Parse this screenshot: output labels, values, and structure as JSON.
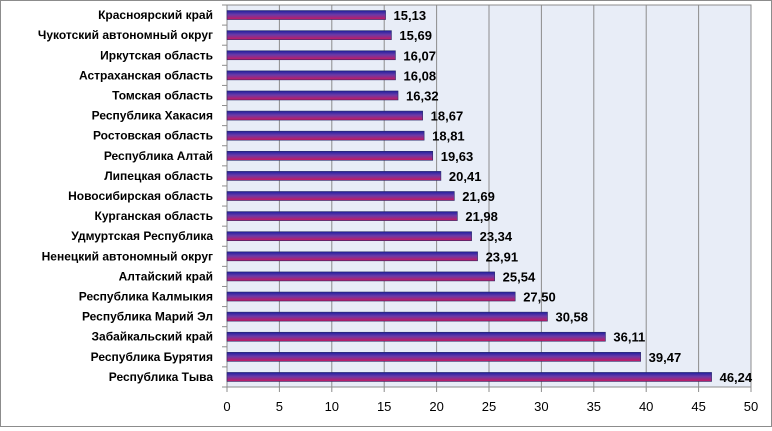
{
  "chart_data": {
    "type": "bar",
    "orientation": "horizontal",
    "categories": [
      "Красноярский край",
      "Чукотский автономный округ",
      "Иркутская область",
      "Астраханская область",
      "Томская область",
      "Республика Хакасия",
      "Ростовская область",
      "Республика Алтай",
      "Липецкая область",
      "Новосибирская область",
      "Курганская область",
      "Удмуртская Республика",
      "Ненецкий автономный округ",
      "Алтайский край",
      "Республика Калмыкия",
      "Республика Марий Эл",
      "Забайкальский край",
      "Республика Бурятия",
      "Республика Тыва"
    ],
    "values": [
      15.13,
      15.69,
      16.07,
      16.08,
      16.32,
      18.67,
      18.81,
      19.63,
      20.41,
      21.69,
      21.98,
      23.34,
      23.91,
      25.54,
      27.5,
      30.58,
      36.11,
      39.47,
      46.24
    ],
    "value_labels": [
      "15,13",
      "15,69",
      "16,07",
      "16,08",
      "16,32",
      "18,67",
      "18,81",
      "19,63",
      "20,41",
      "21,69",
      "21,98",
      "23,34",
      "23,91",
      "25,54",
      "27,50",
      "30,58",
      "36,11",
      "39,47",
      "46,24"
    ],
    "xlim": [
      0,
      50
    ],
    "xticks": [
      0,
      5,
      10,
      15,
      20,
      25,
      30,
      35,
      40,
      45,
      50
    ],
    "xtick_labels": [
      "0",
      "5",
      "10",
      "15",
      "20",
      "25",
      "30",
      "35",
      "40",
      "45",
      "50"
    ],
    "grid": "vertical",
    "legend": "none",
    "colors": {
      "bar_top": "#1f1f9e",
      "bar_bottom": "#c8185e",
      "plot_bg": "#e8edf7",
      "grid": "#8c8c8c"
    }
  }
}
